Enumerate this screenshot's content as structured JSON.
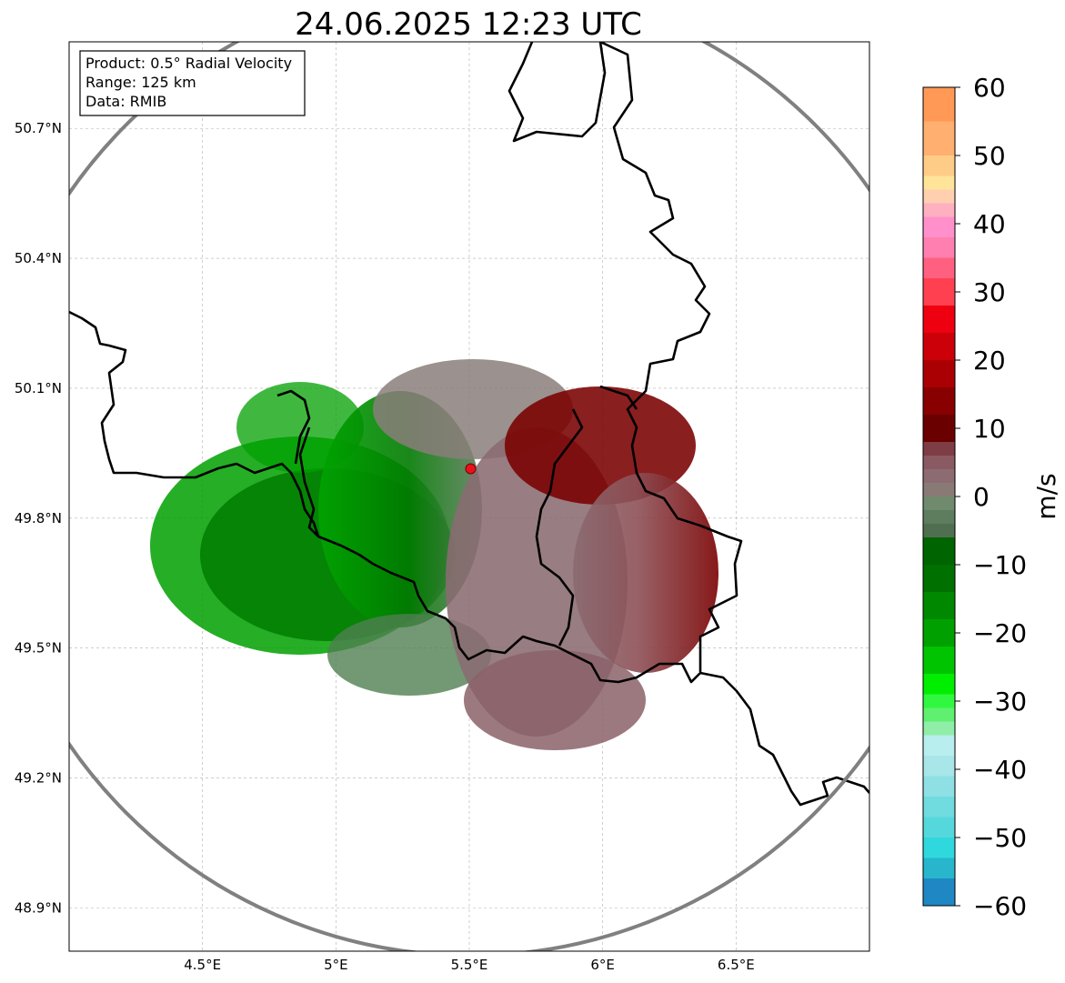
{
  "title": "24.06.2025 12:23 UTC",
  "info_box": {
    "product": "Product: 0.5° Radial Velocity",
    "range": "Range: 125 km",
    "source": "Data: RMIB"
  },
  "map": {
    "lon_range": [
      4.0,
      7.0
    ],
    "lat_range": [
      48.8,
      50.9
    ],
    "x_ticks": [
      {
        "value": 4.5,
        "label": "4.5°E"
      },
      {
        "value": 5.0,
        "label": "5°E"
      },
      {
        "value": 5.5,
        "label": "5.5°E"
      },
      {
        "value": 6.0,
        "label": "6°E"
      },
      {
        "value": 6.5,
        "label": "6.5°E"
      }
    ],
    "y_ticks": [
      {
        "value": 50.7,
        "label": "50.7°N"
      },
      {
        "value": 50.4,
        "label": "50.4°N"
      },
      {
        "value": 50.1,
        "label": "50.1°N"
      },
      {
        "value": 49.8,
        "label": "49.8°N"
      },
      {
        "value": 49.5,
        "label": "49.5°N"
      },
      {
        "value": 49.2,
        "label": "49.2°N"
      },
      {
        "value": 48.9,
        "label": "48.9°N"
      }
    ],
    "gridlines": true,
    "radar_site": {
      "lon": 5.505,
      "lat": 49.914
    },
    "range_ring_km": 125,
    "colors": {
      "range_ring": "#808080",
      "borders": "#000000",
      "radar_marker": "#e8121c"
    }
  },
  "colorbar": {
    "label": "m/s",
    "min": -60,
    "max": 60,
    "tick_labels": [
      "60",
      "50",
      "40",
      "30",
      "20",
      "10",
      "0",
      "−10",
      "−20",
      "−30",
      "−40",
      "−50",
      "−60"
    ],
    "bands": [
      {
        "from": 55,
        "to": 60,
        "color": "#ff9955"
      },
      {
        "from": 50,
        "to": 55,
        "color": "#ffb070"
      },
      {
        "from": 47,
        "to": 50,
        "color": "#ffcc88"
      },
      {
        "from": 45,
        "to": 47,
        "color": "#ffe499"
      },
      {
        "from": 43,
        "to": 45,
        "color": "#ffcfb0"
      },
      {
        "from": 41,
        "to": 43,
        "color": "#ffb0c0"
      },
      {
        "from": 38,
        "to": 41,
        "color": "#ff90cc"
      },
      {
        "from": 35,
        "to": 38,
        "color": "#ff80b0"
      },
      {
        "from": 32,
        "to": 35,
        "color": "#ff6080"
      },
      {
        "from": 28,
        "to": 32,
        "color": "#ff4050"
      },
      {
        "from": 24,
        "to": 28,
        "color": "#ee0010"
      },
      {
        "from": 20,
        "to": 24,
        "color": "#cc0008"
      },
      {
        "from": 16,
        "to": 20,
        "color": "#aa0004"
      },
      {
        "from": 12,
        "to": 16,
        "color": "#880000"
      },
      {
        "from": 8,
        "to": 12,
        "color": "#6a0000"
      },
      {
        "from": 6,
        "to": 8,
        "color": "#7e3d45"
      },
      {
        "from": 4,
        "to": 6,
        "color": "#8a5a63"
      },
      {
        "from": 2,
        "to": 4,
        "color": "#8c6b72"
      },
      {
        "from": 0,
        "to": 2,
        "color": "#8a7a76"
      },
      {
        "from": -2,
        "to": 0,
        "color": "#6f8a6c"
      },
      {
        "from": -4,
        "to": -2,
        "color": "#5e7d5e"
      },
      {
        "from": -6,
        "to": -4,
        "color": "#4f6f50"
      },
      {
        "from": -10,
        "to": -6,
        "color": "#006400"
      },
      {
        "from": -14,
        "to": -10,
        "color": "#007000"
      },
      {
        "from": -18,
        "to": -14,
        "color": "#008800"
      },
      {
        "from": -22,
        "to": -18,
        "color": "#00a000"
      },
      {
        "from": -26,
        "to": -22,
        "color": "#00c400"
      },
      {
        "from": -29,
        "to": -26,
        "color": "#00ee00"
      },
      {
        "from": -31,
        "to": -29,
        "color": "#30f840"
      },
      {
        "from": -33,
        "to": -31,
        "color": "#60f070"
      },
      {
        "from": -35,
        "to": -33,
        "color": "#90eea8"
      },
      {
        "from": -38,
        "to": -35,
        "color": "#b8eeee"
      },
      {
        "from": -41,
        "to": -38,
        "color": "#a8e6ea"
      },
      {
        "from": -44,
        "to": -41,
        "color": "#8ee0e4"
      },
      {
        "from": -47,
        "to": -44,
        "color": "#70dcdf"
      },
      {
        "from": -50,
        "to": -47,
        "color": "#55d8db"
      },
      {
        "from": -53,
        "to": -50,
        "color": "#2fd8dc"
      },
      {
        "from": -56,
        "to": -53,
        "color": "#27b6cc"
      },
      {
        "from": -60,
        "to": -56,
        "color": "#1f88c4"
      }
    ]
  }
}
